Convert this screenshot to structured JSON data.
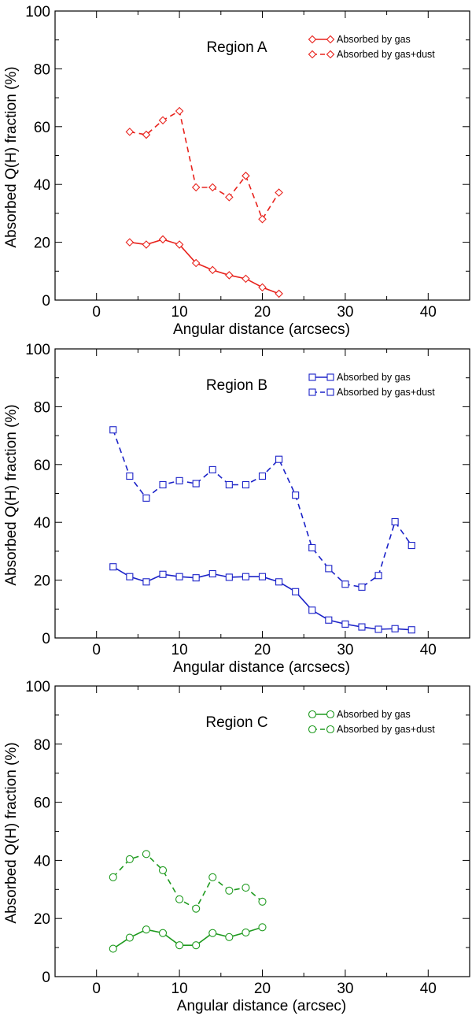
{
  "chart_data": [
    {
      "type": "line",
      "title": "Region A",
      "xlabel": "Angular distance (arcsecs)",
      "ylabel": "Absorbed Q(H) fraction (%)",
      "xlim": [
        -5,
        45
      ],
      "ylim": [
        0,
        100
      ],
      "xticks": [
        0,
        10,
        20,
        30,
        40
      ],
      "yticks": [
        0,
        20,
        40,
        60,
        80,
        100
      ],
      "grid": false,
      "legend_position": "top-right",
      "color": "#e8221c",
      "marker": "diamond",
      "series": [
        {
          "name": "Absorbed by gas",
          "style": "solid",
          "x": [
            4,
            6,
            8,
            10,
            12,
            14,
            16,
            18,
            20,
            22
          ],
          "y": [
            20,
            19.2,
            21,
            19.2,
            12.8,
            10.4,
            8.6,
            7.4,
            4.4,
            2.2
          ]
        },
        {
          "name": "Absorbed by gas+dust",
          "style": "dashed",
          "x": [
            4,
            6,
            8,
            10,
            12,
            14,
            16,
            18,
            20,
            22
          ],
          "y": [
            58.2,
            57.2,
            62.2,
            65.4,
            39,
            39,
            35.6,
            43,
            28,
            37.2
          ]
        }
      ]
    },
    {
      "type": "line",
      "title": "Region B",
      "xlabel": "Angular distance (arcsecs)",
      "ylabel": "Absorbed Q(H) fraction (%)",
      "xlim": [
        -5,
        45
      ],
      "ylim": [
        0,
        100
      ],
      "xticks": [
        0,
        10,
        20,
        30,
        40
      ],
      "yticks": [
        0,
        20,
        40,
        60,
        80,
        100
      ],
      "grid": false,
      "legend_position": "top-right",
      "color": "#1b22c8",
      "marker": "square",
      "series": [
        {
          "name": "Absorbed by gas",
          "style": "solid",
          "x": [
            2,
            4,
            6,
            8,
            10,
            12,
            14,
            16,
            18,
            20,
            22,
            24,
            26,
            28,
            30,
            32,
            34,
            36,
            38
          ],
          "y": [
            24.6,
            21.2,
            19.4,
            22,
            21.2,
            20.8,
            22.2,
            21,
            21.2,
            21.2,
            19.4,
            16,
            9.6,
            6.2,
            4.8,
            3.8,
            3,
            3.2,
            2.8
          ]
        },
        {
          "name": "Absorbed by gas+dust",
          "style": "dashed",
          "x": [
            2,
            4,
            6,
            8,
            10,
            12,
            14,
            16,
            18,
            20,
            22,
            24,
            26,
            28,
            30,
            32,
            34,
            36,
            38
          ],
          "y": [
            72,
            56,
            48.4,
            53,
            54.4,
            53.4,
            58.2,
            53,
            53,
            56,
            61.8,
            49.4,
            31.2,
            24,
            18.6,
            17.6,
            21.6,
            40.2,
            32
          ]
        }
      ]
    },
    {
      "type": "line",
      "title": "Region C",
      "xlabel": "Angular distance (arcsec)",
      "ylabel": "Absorbed Q(H) fraction (%)",
      "xlim": [
        -5,
        45
      ],
      "ylim": [
        0,
        100
      ],
      "xticks": [
        0,
        10,
        20,
        30,
        40
      ],
      "yticks": [
        0,
        20,
        40,
        60,
        80,
        100
      ],
      "grid": false,
      "legend_position": "top-right",
      "color": "#1e9a1e",
      "marker": "circle",
      "series": [
        {
          "name": "Absorbed by gas",
          "style": "solid",
          "x": [
            2,
            4,
            6,
            8,
            10,
            12,
            14,
            16,
            18,
            20
          ],
          "y": [
            9.6,
            13.4,
            16.2,
            15,
            10.8,
            10.8,
            15,
            13.6,
            15.2,
            17
          ]
        },
        {
          "name": "Absorbed by gas+dust",
          "style": "dashed",
          "x": [
            2,
            4,
            6,
            8,
            10,
            12,
            14,
            16,
            18,
            20
          ],
          "y": [
            34.2,
            40.4,
            42.2,
            36.6,
            26.6,
            23.4,
            34.2,
            29.6,
            30.6,
            25.8
          ]
        }
      ]
    }
  ]
}
